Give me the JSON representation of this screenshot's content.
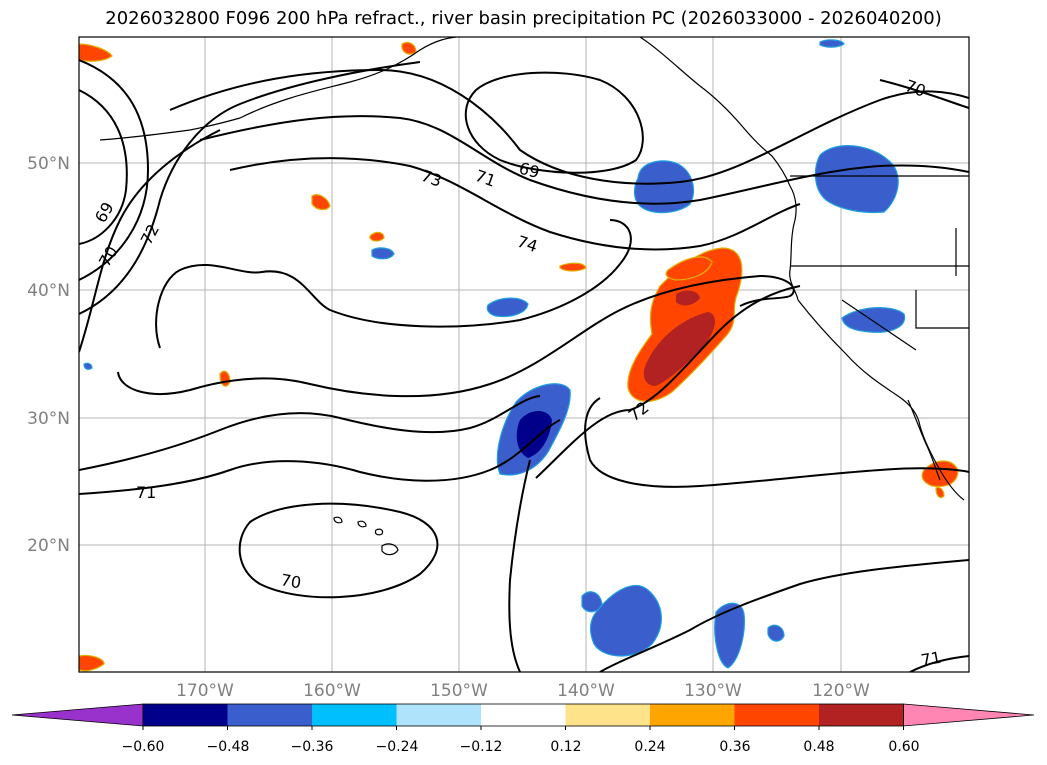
{
  "title": "2026032800 F096 200 hPa refract., river basin precipitation PC (2026033000 - 2026040200)",
  "lat_labels": [
    "50°N",
    "40°N",
    "30°N",
    "20°N"
  ],
  "lon_labels": [
    "170°W",
    "160°W",
    "150°W",
    "140°W",
    "130°W",
    "120°W"
  ],
  "contour_labels": [
    "69",
    "70",
    "72",
    "73",
    "71",
    "69",
    "74",
    "72",
    "71",
    "70",
    "70",
    "71"
  ],
  "colorbar": {
    "tick_labels": [
      "−0.60",
      "−0.48",
      "−0.36",
      "−0.24",
      "−0.12",
      "0.12",
      "0.24",
      "0.36",
      "0.48",
      "0.60"
    ],
    "colors": [
      "#9932cc",
      "#00008b",
      "#3a5fcd",
      "#00bfff",
      "#aee3fb",
      "#ffffff",
      "#ffe38a",
      "#ffa500",
      "#ff4500",
      "#b22222",
      "#ff85b2"
    ]
  },
  "palette": {
    "neg_strong": "#00008b",
    "neg_mid": "#3a5fcd",
    "neg_light": "#00bfff",
    "pos_light": "#ffe38a",
    "pos_mid": "#ff4500",
    "pos_strong": "#b22222"
  }
}
